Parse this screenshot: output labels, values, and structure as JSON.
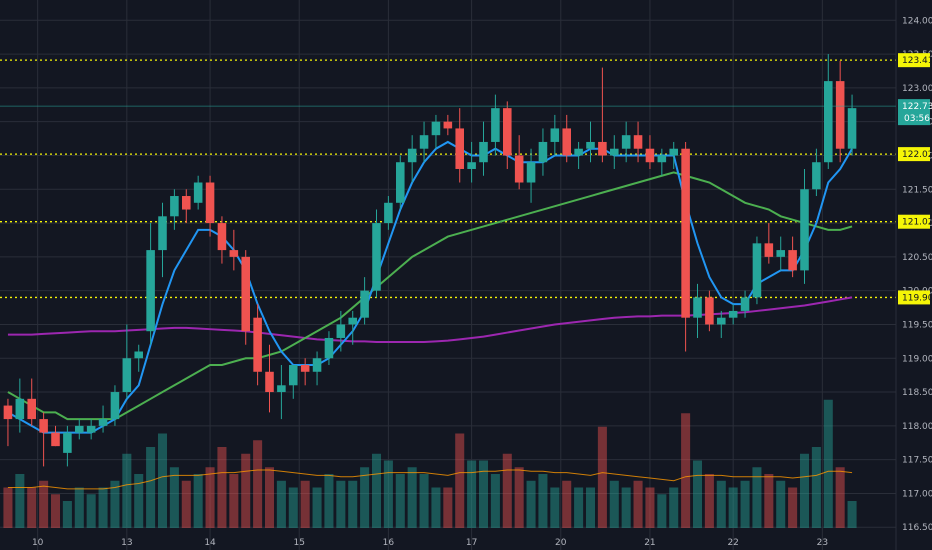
{
  "chart_data": {
    "type": "candlestick",
    "y_range": [
      116.4,
      124.3
    ],
    "y_ticks": [
      "124.00",
      "123.50",
      "123.00",
      "122.50",
      "122.00",
      "121.50",
      "121.00",
      "120.50",
      "120.00",
      "119.50",
      "119.00",
      "118.50",
      "118.00",
      "117.50",
      "117.00",
      "116.50"
    ],
    "x_ticks": [
      {
        "label": "10",
        "bar": 2.5
      },
      {
        "label": "13",
        "bar": 10
      },
      {
        "label": "14",
        "bar": 17
      },
      {
        "label": "15",
        "bar": 24.5
      },
      {
        "label": "16",
        "bar": 32
      },
      {
        "label": "17",
        "bar": 39
      },
      {
        "label": "20",
        "bar": 46.5
      },
      {
        "label": "21",
        "bar": 54
      },
      {
        "label": "22",
        "bar": 61
      },
      {
        "label": "23",
        "bar": 68.5
      }
    ],
    "levels": [
      {
        "label": "123.41",
        "value": 123.41
      },
      {
        "label": "122.02",
        "value": 122.02
      },
      {
        "label": "121.02",
        "value": 121.02
      },
      {
        "label": "119.90",
        "value": 119.9
      }
    ],
    "last_price": {
      "value": 122.73,
      "label": "122.73",
      "countdown": "03:56"
    },
    "colors": {
      "background": "#131722",
      "grid": "#2a2e39",
      "up": "#26a69a",
      "down": "#ef5350",
      "level": "#f5f507",
      "ma_fast": "#2196f3",
      "ma_mid": "#4caf50",
      "ma_slow": "#9c27b0",
      "vol_up": "#26a69a",
      "vol_down": "#ef5350",
      "vol_ma": "#ff9800"
    },
    "candles": [
      [
        118.3,
        118.4,
        117.7,
        118.1
      ],
      [
        118.1,
        118.7,
        117.9,
        118.4
      ],
      [
        118.4,
        118.7,
        118.0,
        118.1
      ],
      [
        118.1,
        118.2,
        117.4,
        117.9
      ],
      [
        117.9,
        118.0,
        117.7,
        117.7
      ],
      [
        117.6,
        118.0,
        117.4,
        117.9
      ],
      [
        117.9,
        118.1,
        117.8,
        118.0
      ],
      [
        117.9,
        118.1,
        117.8,
        118.0
      ],
      [
        118.0,
        118.3,
        117.9,
        118.1
      ],
      [
        118.1,
        118.6,
        118.0,
        118.5
      ],
      [
        118.5,
        119.5,
        118.4,
        119.0
      ],
      [
        119.0,
        119.2,
        118.8,
        119.1
      ],
      [
        119.4,
        121.0,
        119.2,
        120.6
      ],
      [
        120.6,
        121.3,
        120.2,
        121.1
      ],
      [
        121.1,
        121.5,
        120.9,
        121.4
      ],
      [
        121.4,
        121.5,
        121.0,
        121.2
      ],
      [
        121.3,
        121.7,
        121.2,
        121.6
      ],
      [
        121.6,
        121.7,
        120.8,
        121.0
      ],
      [
        121.0,
        121.1,
        120.4,
        120.6
      ],
      [
        120.6,
        120.9,
        120.3,
        120.5
      ],
      [
        120.5,
        120.6,
        119.2,
        119.4
      ],
      [
        119.6,
        119.8,
        118.6,
        118.8
      ],
      [
        118.8,
        119.2,
        118.2,
        118.5
      ],
      [
        118.5,
        118.9,
        118.1,
        118.6
      ],
      [
        118.6,
        118.9,
        118.4,
        118.9
      ],
      [
        118.9,
        119.0,
        118.6,
        118.8
      ],
      [
        118.8,
        119.1,
        118.6,
        119.0
      ],
      [
        119.0,
        119.4,
        118.9,
        119.3
      ],
      [
        119.3,
        119.7,
        119.1,
        119.5
      ],
      [
        119.5,
        119.7,
        119.2,
        119.6
      ],
      [
        119.6,
        120.2,
        119.5,
        120.0
      ],
      [
        120.0,
        121.2,
        119.9,
        121.0
      ],
      [
        121.0,
        121.4,
        120.9,
        121.3
      ],
      [
        121.3,
        122.0,
        121.2,
        121.9
      ],
      [
        121.9,
        122.3,
        121.6,
        122.1
      ],
      [
        122.1,
        122.5,
        121.9,
        122.3
      ],
      [
        122.3,
        122.6,
        122.1,
        122.5
      ],
      [
        122.5,
        122.6,
        122.3,
        122.4
      ],
      [
        122.4,
        122.7,
        121.6,
        121.8
      ],
      [
        121.8,
        122.2,
        121.6,
        121.9
      ],
      [
        121.9,
        122.5,
        121.7,
        122.2
      ],
      [
        122.2,
        122.9,
        122.0,
        122.7
      ],
      [
        122.7,
        122.8,
        121.8,
        122.0
      ],
      [
        122.0,
        122.3,
        121.5,
        121.6
      ],
      [
        121.6,
        122.1,
        121.3,
        121.9
      ],
      [
        121.9,
        122.4,
        121.7,
        122.2
      ],
      [
        122.2,
        122.6,
        122.0,
        122.4
      ],
      [
        122.4,
        122.6,
        121.9,
        122.0
      ],
      [
        122.0,
        122.2,
        121.8,
        122.1
      ],
      [
        122.1,
        122.5,
        121.9,
        122.2
      ],
      [
        122.2,
        123.3,
        121.9,
        122.0
      ],
      [
        122.0,
        122.3,
        121.8,
        122.1
      ],
      [
        122.1,
        122.5,
        121.9,
        122.3
      ],
      [
        122.3,
        122.5,
        121.9,
        122.1
      ],
      [
        122.1,
        122.3,
        121.8,
        121.9
      ],
      [
        121.9,
        122.1,
        121.7,
        122.0
      ],
      [
        122.0,
        122.2,
        121.8,
        122.1
      ],
      [
        122.1,
        122.2,
        119.1,
        119.6
      ],
      [
        119.6,
        120.1,
        119.3,
        119.9
      ],
      [
        119.9,
        120.0,
        119.4,
        119.5
      ],
      [
        119.5,
        119.7,
        119.3,
        119.6
      ],
      [
        119.6,
        119.8,
        119.5,
        119.7
      ],
      [
        119.7,
        120.0,
        119.6,
        119.9
      ],
      [
        119.9,
        120.8,
        119.8,
        120.7
      ],
      [
        120.7,
        121.0,
        120.4,
        120.5
      ],
      [
        120.5,
        120.8,
        120.3,
        120.6
      ],
      [
        120.6,
        120.8,
        120.2,
        120.3
      ],
      [
        120.3,
        121.8,
        120.1,
        121.5
      ],
      [
        121.5,
        122.1,
        121.4,
        121.9
      ],
      [
        121.9,
        123.5,
        121.8,
        123.1
      ],
      [
        123.1,
        123.4,
        121.9,
        122.1
      ],
      [
        122.1,
        122.9,
        122.0,
        122.7
      ]
    ],
    "ma_fast": [
      118.2,
      118.1,
      118.0,
      117.9,
      117.9,
      117.9,
      117.9,
      117.9,
      118.0,
      118.1,
      118.4,
      118.6,
      119.2,
      119.8,
      120.3,
      120.6,
      120.9,
      120.9,
      120.8,
      120.6,
      120.3,
      119.8,
      119.4,
      119.1,
      118.9,
      118.9,
      118.9,
      119.0,
      119.2,
      119.4,
      119.7,
      120.2,
      120.7,
      121.2,
      121.6,
      121.9,
      122.1,
      122.2,
      122.1,
      122.0,
      122.0,
      122.1,
      122.0,
      121.9,
      121.9,
      121.9,
      122.0,
      122.0,
      122.0,
      122.1,
      122.1,
      122.0,
      122.0,
      122.0,
      122.0,
      122.0,
      122.0,
      121.3,
      120.7,
      120.2,
      119.9,
      119.8,
      119.8,
      120.1,
      120.2,
      120.3,
      120.3,
      120.6,
      121.0,
      121.6,
      121.8,
      122.1
    ],
    "ma_mid": [
      118.5,
      118.4,
      118.3,
      118.2,
      118.2,
      118.1,
      118.1,
      118.1,
      118.1,
      118.1,
      118.2,
      118.3,
      118.4,
      118.5,
      118.6,
      118.7,
      118.8,
      118.9,
      118.9,
      118.95,
      119.0,
      119.0,
      119.05,
      119.1,
      119.2,
      119.3,
      119.4,
      119.5,
      119.6,
      119.75,
      119.9,
      120.05,
      120.2,
      120.35,
      120.5,
      120.6,
      120.7,
      120.8,
      120.85,
      120.9,
      120.95,
      121.0,
      121.05,
      121.1,
      121.15,
      121.2,
      121.25,
      121.3,
      121.35,
      121.4,
      121.45,
      121.5,
      121.55,
      121.6,
      121.65,
      121.7,
      121.75,
      121.7,
      121.65,
      121.6,
      121.5,
      121.4,
      121.3,
      121.25,
      121.2,
      121.1,
      121.05,
      121.0,
      120.95,
      120.9,
      120.9,
      120.95
    ],
    "ma_slow": [
      119.35,
      119.35,
      119.35,
      119.36,
      119.37,
      119.38,
      119.39,
      119.4,
      119.4,
      119.4,
      119.41,
      119.42,
      119.43,
      119.44,
      119.45,
      119.45,
      119.44,
      119.43,
      119.42,
      119.41,
      119.4,
      119.38,
      119.36,
      119.34,
      119.32,
      119.3,
      119.28,
      119.27,
      119.26,
      119.25,
      119.25,
      119.24,
      119.24,
      119.24,
      119.24,
      119.24,
      119.25,
      119.26,
      119.28,
      119.3,
      119.32,
      119.35,
      119.38,
      119.41,
      119.44,
      119.47,
      119.5,
      119.52,
      119.54,
      119.56,
      119.58,
      119.6,
      119.61,
      119.62,
      119.62,
      119.63,
      119.63,
      119.63,
      119.64,
      119.65,
      119.66,
      119.67,
      119.68,
      119.7,
      119.72,
      119.74,
      119.76,
      119.78,
      119.81,
      119.84,
      119.87,
      119.9
    ],
    "volume": [
      0.3,
      0.4,
      0.3,
      0.35,
      0.25,
      0.2,
      0.3,
      0.25,
      0.3,
      0.35,
      0.55,
      0.4,
      0.6,
      0.7,
      0.45,
      0.35,
      0.4,
      0.45,
      0.6,
      0.4,
      0.55,
      0.65,
      0.45,
      0.35,
      0.3,
      0.35,
      0.3,
      0.4,
      0.35,
      0.35,
      0.45,
      0.55,
      0.5,
      0.4,
      0.45,
      0.4,
      0.3,
      0.3,
      0.7,
      0.5,
      0.5,
      0.4,
      0.55,
      0.45,
      0.35,
      0.4,
      0.3,
      0.35,
      0.3,
      0.3,
      0.75,
      0.35,
      0.3,
      0.35,
      0.3,
      0.25,
      0.3,
      0.85,
      0.5,
      0.4,
      0.35,
      0.3,
      0.35,
      0.45,
      0.4,
      0.35,
      0.3,
      0.55,
      0.6,
      0.95,
      0.45,
      0.2
    ],
    "volume_ma": [
      0.3,
      0.3,
      0.3,
      0.31,
      0.3,
      0.29,
      0.29,
      0.29,
      0.29,
      0.3,
      0.32,
      0.33,
      0.35,
      0.38,
      0.39,
      0.39,
      0.39,
      0.4,
      0.41,
      0.41,
      0.42,
      0.43,
      0.43,
      0.42,
      0.41,
      0.4,
      0.39,
      0.39,
      0.38,
      0.38,
      0.39,
      0.4,
      0.41,
      0.41,
      0.41,
      0.41,
      0.4,
      0.39,
      0.41,
      0.41,
      0.42,
      0.42,
      0.43,
      0.43,
      0.42,
      0.42,
      0.41,
      0.41,
      0.4,
      0.39,
      0.41,
      0.4,
      0.39,
      0.38,
      0.37,
      0.36,
      0.35,
      0.38,
      0.39,
      0.39,
      0.39,
      0.38,
      0.38,
      0.38,
      0.38,
      0.38,
      0.37,
      0.38,
      0.39,
      0.42,
      0.42,
      0.41
    ]
  }
}
